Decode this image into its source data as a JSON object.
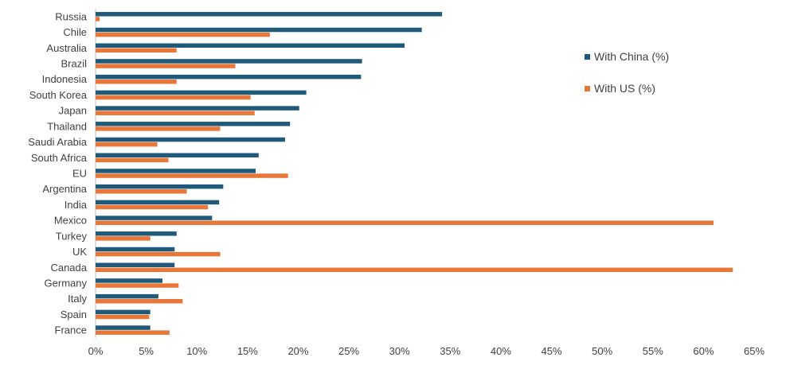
{
  "chart_data": {
    "type": "bar",
    "orientation": "horizontal",
    "categories": [
      "Russia",
      "Chile",
      "Australia",
      "Brazil",
      "Indonesia",
      "South Korea",
      "Japan",
      "Thailand",
      "Saudi Arabia",
      "South Africa",
      "EU",
      "Argentina",
      "India",
      "Mexico",
      "Turkey",
      "UK",
      "Canada",
      "Germany",
      "Italy",
      "Spain",
      "France"
    ],
    "series": [
      {
        "name": "With China (%)",
        "color": "#1f5a7a",
        "values": [
          34.2,
          32.2,
          30.5,
          26.3,
          26.2,
          20.8,
          20.1,
          19.2,
          18.7,
          16.1,
          15.8,
          12.6,
          12.2,
          11.5,
          8.0,
          7.8,
          7.8,
          6.6,
          6.2,
          5.4,
          5.4
        ]
      },
      {
        "name": "With US (%)",
        "color": "#e8773a",
        "values": [
          0.4,
          17.2,
          8.0,
          13.8,
          8.0,
          15.3,
          15.7,
          12.3,
          6.1,
          7.2,
          19.0,
          9.0,
          11.1,
          61.0,
          5.4,
          12.3,
          62.9,
          8.2,
          8.6,
          5.3,
          7.3
        ]
      }
    ],
    "xlim": [
      0,
      65
    ],
    "xticks": [
      0,
      5,
      10,
      15,
      20,
      25,
      30,
      35,
      40,
      45,
      50,
      55,
      60,
      65
    ],
    "xtick_labels": [
      "0%",
      "5%",
      "10%",
      "15%",
      "20%",
      "25%",
      "30%",
      "35%",
      "40%",
      "45%",
      "50%",
      "55%",
      "60%",
      "65%"
    ],
    "title": "",
    "xlabel": "",
    "ylabel": "",
    "grid": false,
    "legend": {
      "placement": "top-right",
      "entries": [
        "With China (%)",
        "With US (%)"
      ]
    }
  }
}
